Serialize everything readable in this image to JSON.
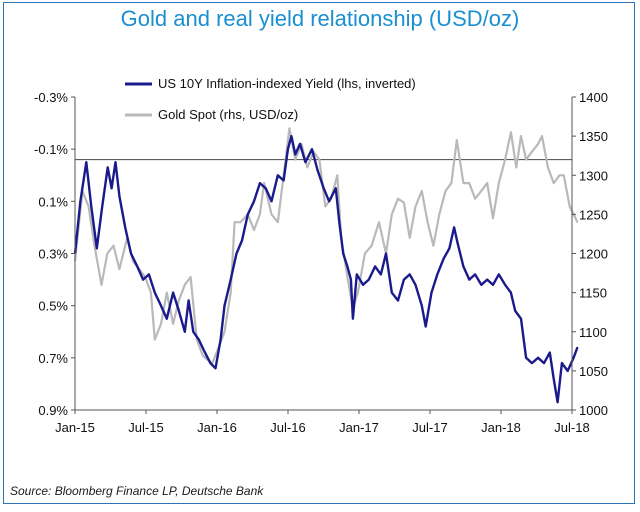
{
  "title": "Gold and real yield relationship (USD/oz)",
  "source": "Source: Bloomberg Finance LP, Deutsche Bank",
  "colors": {
    "title": "#1a8fd0",
    "frame": "#2b74b8",
    "yield": "#1a1a8c",
    "gold": "#b9b9b9"
  },
  "chart_data": {
    "type": "line",
    "x_ticks": [
      "Jan-15",
      "Jul-15",
      "Jan-16",
      "Jul-16",
      "Jan-17",
      "Jul-17",
      "Jan-18",
      "Jul-18"
    ],
    "y_left": {
      "ticks": [
        "-0.3%",
        "-0.1%",
        "0.1%",
        "0.3%",
        "0.5%",
        "0.7%",
        "0.9%"
      ],
      "range": [
        -0.3,
        0.9
      ],
      "inverted": true
    },
    "y_right": {
      "ticks": [
        "1400",
        "1350",
        "1300",
        "1250",
        "1200",
        "1150",
        "1100",
        "1050",
        "1000"
      ],
      "range": [
        1000,
        1400
      ]
    },
    "reference_line_left": -0.06,
    "legend_position": "top-center",
    "series": [
      {
        "name": "US 10Y Inflation-indexed Yield (lhs, inverted)",
        "axis": "left",
        "color": "#1a1a8c",
        "points": [
          [
            "2015-01-01",
            0.3
          ],
          [
            "2015-01-15",
            0.1
          ],
          [
            "2015-01-30",
            -0.05
          ],
          [
            "2015-02-12",
            0.12
          ],
          [
            "2015-02-26",
            0.28
          ],
          [
            "2015-03-12",
            0.12
          ],
          [
            "2015-03-26",
            -0.03
          ],
          [
            "2015-04-05",
            0.05
          ],
          [
            "2015-04-15",
            -0.05
          ],
          [
            "2015-04-25",
            0.08
          ],
          [
            "2015-05-10",
            0.2
          ],
          [
            "2015-05-25",
            0.3
          ],
          [
            "2015-06-10",
            0.35
          ],
          [
            "2015-06-25",
            0.4
          ],
          [
            "2015-07-10",
            0.38
          ],
          [
            "2015-07-25",
            0.45
          ],
          [
            "2015-08-10",
            0.5
          ],
          [
            "2015-08-25",
            0.55
          ],
          [
            "2015-09-10",
            0.45
          ],
          [
            "2015-09-25",
            0.52
          ],
          [
            "2015-10-10",
            0.6
          ],
          [
            "2015-10-20",
            0.48
          ],
          [
            "2015-11-01",
            0.6
          ],
          [
            "2015-11-15",
            0.63
          ],
          [
            "2015-12-01",
            0.68
          ],
          [
            "2015-12-15",
            0.72
          ],
          [
            "2015-12-28",
            0.74
          ],
          [
            "2016-01-10",
            0.63
          ],
          [
            "2016-01-20",
            0.5
          ],
          [
            "2016-02-05",
            0.4
          ],
          [
            "2016-02-20",
            0.3
          ],
          [
            "2016-03-05",
            0.25
          ],
          [
            "2016-03-20",
            0.15
          ],
          [
            "2016-04-05",
            0.1
          ],
          [
            "2016-04-20",
            0.03
          ],
          [
            "2016-05-05",
            0.05
          ],
          [
            "2016-05-20",
            0.1
          ],
          [
            "2016-06-05",
            0.0
          ],
          [
            "2016-06-20",
            0.02
          ],
          [
            "2016-07-01",
            -0.1
          ],
          [
            "2016-07-10",
            -0.15
          ],
          [
            "2016-07-20",
            -0.08
          ],
          [
            "2016-08-01",
            -0.12
          ],
          [
            "2016-08-15",
            -0.05
          ],
          [
            "2016-09-01",
            -0.1
          ],
          [
            "2016-09-15",
            -0.02
          ],
          [
            "2016-10-01",
            0.05
          ],
          [
            "2016-10-15",
            0.1
          ],
          [
            "2016-11-01",
            0.05
          ],
          [
            "2016-11-10",
            0.18
          ],
          [
            "2016-11-20",
            0.3
          ],
          [
            "2016-12-01",
            0.35
          ],
          [
            "2016-12-10",
            0.4
          ],
          [
            "2016-12-15",
            0.55
          ],
          [
            "2016-12-25",
            0.38
          ],
          [
            "2017-01-10",
            0.42
          ],
          [
            "2017-01-25",
            0.4
          ],
          [
            "2017-02-10",
            0.35
          ],
          [
            "2017-02-25",
            0.38
          ],
          [
            "2017-03-10",
            0.3
          ],
          [
            "2017-03-25",
            0.45
          ],
          [
            "2017-04-10",
            0.48
          ],
          [
            "2017-04-25",
            0.4
          ],
          [
            "2017-05-10",
            0.38
          ],
          [
            "2017-05-25",
            0.42
          ],
          [
            "2017-06-10",
            0.5
          ],
          [
            "2017-06-20",
            0.58
          ],
          [
            "2017-07-05",
            0.45
          ],
          [
            "2017-07-20",
            0.38
          ],
          [
            "2017-08-05",
            0.32
          ],
          [
            "2017-08-20",
            0.28
          ],
          [
            "2017-09-01",
            0.2
          ],
          [
            "2017-09-10",
            0.26
          ],
          [
            "2017-09-25",
            0.35
          ],
          [
            "2017-10-10",
            0.4
          ],
          [
            "2017-10-25",
            0.38
          ],
          [
            "2017-11-10",
            0.42
          ],
          [
            "2017-11-25",
            0.4
          ],
          [
            "2017-12-10",
            0.42
          ],
          [
            "2017-12-25",
            0.38
          ],
          [
            "2018-01-10",
            0.42
          ],
          [
            "2018-01-25",
            0.45
          ],
          [
            "2018-02-05",
            0.52
          ],
          [
            "2018-02-20",
            0.55
          ],
          [
            "2018-03-05",
            0.7
          ],
          [
            "2018-03-20",
            0.72
          ],
          [
            "2018-04-05",
            0.7
          ],
          [
            "2018-04-20",
            0.72
          ],
          [
            "2018-05-05",
            0.68
          ],
          [
            "2018-05-15",
            0.78
          ],
          [
            "2018-05-25",
            0.87
          ],
          [
            "2018-06-05",
            0.72
          ],
          [
            "2018-06-20",
            0.75
          ],
          [
            "2018-07-05",
            0.7
          ],
          [
            "2018-07-15",
            0.66
          ]
        ]
      },
      {
        "name": "Gold Spot (rhs, USD/oz)",
        "axis": "right",
        "color": "#b9b9b9",
        "points": [
          [
            "2015-01-01",
            1190
          ],
          [
            "2015-01-20",
            1280
          ],
          [
            "2015-02-05",
            1260
          ],
          [
            "2015-02-20",
            1210
          ],
          [
            "2015-03-10",
            1160
          ],
          [
            "2015-03-25",
            1200
          ],
          [
            "2015-04-10",
            1210
          ],
          [
            "2015-04-25",
            1180
          ],
          [
            "2015-05-15",
            1220
          ],
          [
            "2015-05-30",
            1190
          ],
          [
            "2015-06-15",
            1180
          ],
          [
            "2015-06-30",
            1170
          ],
          [
            "2015-07-15",
            1150
          ],
          [
            "2015-07-25",
            1090
          ],
          [
            "2015-08-10",
            1110
          ],
          [
            "2015-08-25",
            1150
          ],
          [
            "2015-09-10",
            1110
          ],
          [
            "2015-09-25",
            1140
          ],
          [
            "2015-10-10",
            1160
          ],
          [
            "2015-10-25",
            1170
          ],
          [
            "2015-11-10",
            1090
          ],
          [
            "2015-11-25",
            1070
          ],
          [
            "2015-12-05",
            1065
          ],
          [
            "2015-12-20",
            1060
          ],
          [
            "2016-01-05",
            1080
          ],
          [
            "2016-01-20",
            1100
          ],
          [
            "2016-02-05",
            1150
          ],
          [
            "2016-02-15",
            1240
          ],
          [
            "2016-03-01",
            1240
          ],
          [
            "2016-03-20",
            1250
          ],
          [
            "2016-04-05",
            1230
          ],
          [
            "2016-04-20",
            1250
          ],
          [
            "2016-05-01",
            1290
          ],
          [
            "2016-05-20",
            1250
          ],
          [
            "2016-06-05",
            1240
          ],
          [
            "2016-06-25",
            1320
          ],
          [
            "2016-07-05",
            1360
          ],
          [
            "2016-07-20",
            1320
          ],
          [
            "2016-08-05",
            1340
          ],
          [
            "2016-08-20",
            1310
          ],
          [
            "2016-09-05",
            1330
          ],
          [
            "2016-09-20",
            1320
          ],
          [
            "2016-10-05",
            1260
          ],
          [
            "2016-10-20",
            1270
          ],
          [
            "2016-11-05",
            1300
          ],
          [
            "2016-11-15",
            1220
          ],
          [
            "2016-12-01",
            1170
          ],
          [
            "2016-12-15",
            1130
          ],
          [
            "2016-12-28",
            1150
          ],
          [
            "2017-01-15",
            1200
          ],
          [
            "2017-02-01",
            1210
          ],
          [
            "2017-02-20",
            1240
          ],
          [
            "2017-03-10",
            1200
          ],
          [
            "2017-03-25",
            1250
          ],
          [
            "2017-04-10",
            1270
          ],
          [
            "2017-04-25",
            1265
          ],
          [
            "2017-05-10",
            1220
          ],
          [
            "2017-05-25",
            1260
          ],
          [
            "2017-06-10",
            1280
          ],
          [
            "2017-06-25",
            1240
          ],
          [
            "2017-07-10",
            1210
          ],
          [
            "2017-07-25",
            1250
          ],
          [
            "2017-08-10",
            1280
          ],
          [
            "2017-08-25",
            1290
          ],
          [
            "2017-09-08",
            1345
          ],
          [
            "2017-09-25",
            1290
          ],
          [
            "2017-10-10",
            1290
          ],
          [
            "2017-10-25",
            1270
          ],
          [
            "2017-11-10",
            1280
          ],
          [
            "2017-11-25",
            1290
          ],
          [
            "2017-12-10",
            1245
          ],
          [
            "2017-12-25",
            1290
          ],
          [
            "2018-01-10",
            1320
          ],
          [
            "2018-01-25",
            1355
          ],
          [
            "2018-02-08",
            1310
          ],
          [
            "2018-02-20",
            1350
          ],
          [
            "2018-03-05",
            1320
          ],
          [
            "2018-03-20",
            1330
          ],
          [
            "2018-04-05",
            1340
          ],
          [
            "2018-04-15",
            1350
          ],
          [
            "2018-04-30",
            1310
          ],
          [
            "2018-05-15",
            1290
          ],
          [
            "2018-05-30",
            1300
          ],
          [
            "2018-06-10",
            1300
          ],
          [
            "2018-06-25",
            1260
          ],
          [
            "2018-07-05",
            1250
          ],
          [
            "2018-07-15",
            1240
          ]
        ]
      }
    ]
  }
}
